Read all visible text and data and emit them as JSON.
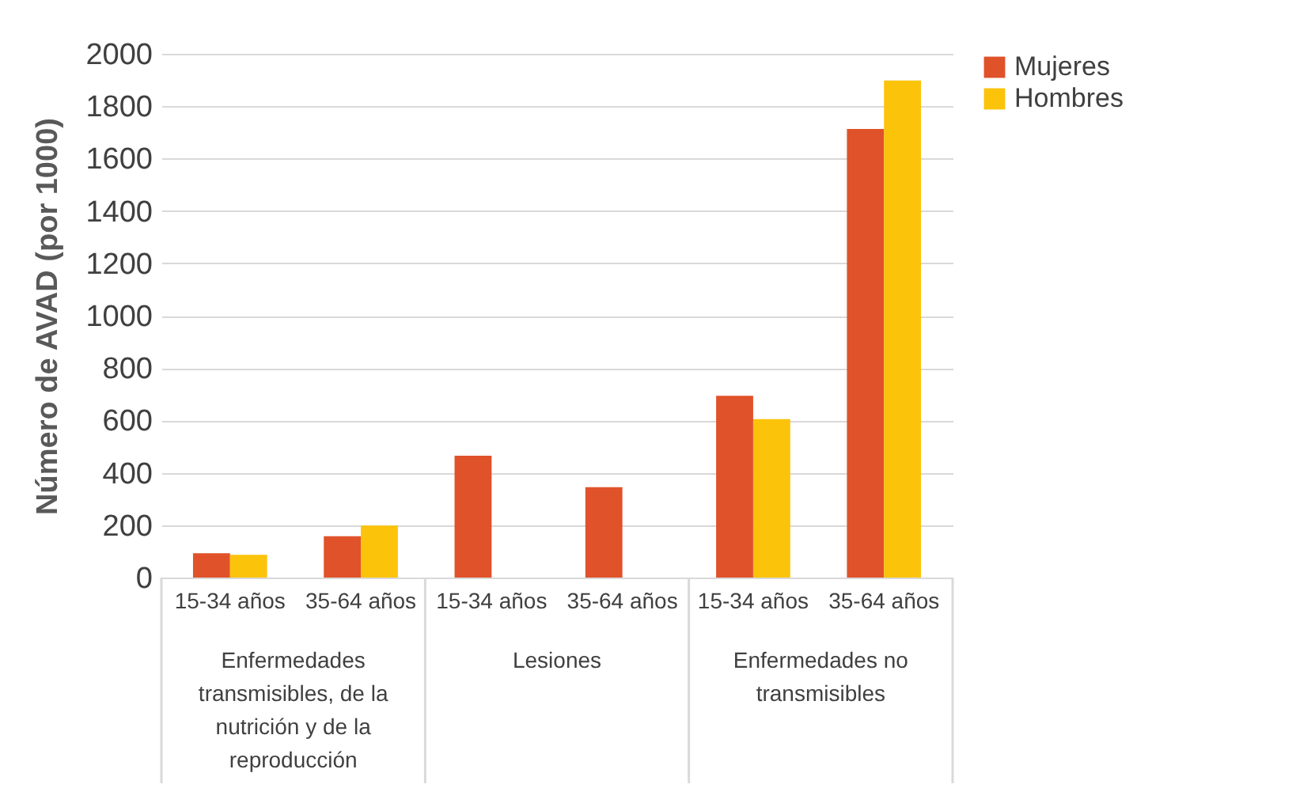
{
  "chart_data": {
    "type": "bar",
    "ylabel": "Número de AVAD (por 1000)",
    "categories": [
      "15-34 años",
      "35-64 años",
      "15-34 años",
      "35-64 años",
      "15-34 años",
      "35-64 años"
    ],
    "series": [
      {
        "name": "Mujeres",
        "color": "#e0522a",
        "values": [
          93,
          158,
          465,
          345,
          694,
          1713
        ]
      },
      {
        "name": "Hombres",
        "color": "#fcc30b",
        "values": [
          87,
          199,
          null,
          null,
          605,
          1898
        ]
      }
    ],
    "annotations": [
      "Enfermedades transmisibles, de la nutrición y de la reproducción",
      "Lesiones",
      "Enfermedades no transmisibles"
    ],
    "ylim": [
      0,
      2000
    ],
    "yticks": [
      0,
      200,
      400,
      600,
      800,
      1000,
      1200,
      1400,
      1600,
      1800,
      2000
    ],
    "grid": "y",
    "legend": "right"
  }
}
